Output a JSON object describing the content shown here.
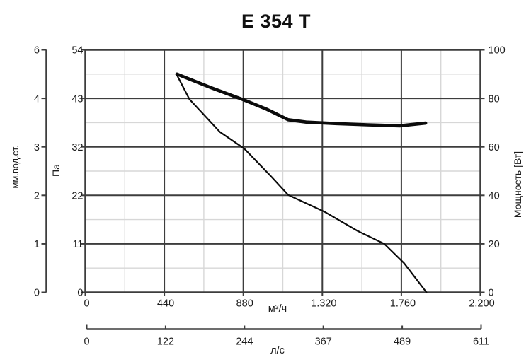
{
  "title": "E 354 T",
  "colors": {
    "background": "#ffffff",
    "grid_major": "#3d3d3d",
    "grid_minor": "#d7d7d7",
    "curve": "#0b0b0b",
    "text": "#1b1b1b"
  },
  "chart_data": {
    "type": "line",
    "title": "E 354 T",
    "x_axis_primary": {
      "label": "м³/ч",
      "range": [
        0,
        2200
      ],
      "ticks": [
        "0",
        "440",
        "880",
        "1.320",
        "1.760",
        "2.200"
      ]
    },
    "x_axis_secondary": {
      "label": "л/с",
      "range": [
        0,
        611
      ],
      "ticks": [
        "0",
        "122",
        "244",
        "367",
        "489",
        "611"
      ]
    },
    "y_axis_pressure_pa": {
      "label": "Па",
      "range": [
        0,
        54
      ],
      "ticks": [
        "0",
        "11",
        "22",
        "32",
        "43",
        "54"
      ]
    },
    "y_axis_pressure_mm": {
      "label": "мм.вод.ст.",
      "ticks": [
        "0",
        "1",
        "2",
        "3",
        "4",
        "6"
      ]
    },
    "y_axis_power": {
      "label": "Мощность [Вт]",
      "range": [
        0,
        100
      ],
      "ticks": [
        "0",
        "20",
        "40",
        "60",
        "80",
        "100"
      ]
    },
    "grid": {
      "x_minor_between_majors": true,
      "y_minor_between_majors": true
    },
    "series": [
      {
        "name": "pressure-curve",
        "y_axis": "y_axis_pressure_pa",
        "style": "thin",
        "points": [
          [
            510,
            48.4
          ],
          [
            580,
            43
          ],
          [
            750,
            35.7
          ],
          [
            885,
            32
          ],
          [
            1035,
            25.8
          ],
          [
            1130,
            21.7
          ],
          [
            1330,
            18
          ],
          [
            1515,
            13.7
          ],
          [
            1665,
            10.8
          ],
          [
            1775,
            6.5
          ],
          [
            1900,
            0
          ]
        ]
      },
      {
        "name": "power-curve",
        "y_axis": "y_axis_power",
        "style": "thick",
        "points": [
          [
            510,
            90
          ],
          [
            700,
            84.4
          ],
          [
            885,
            79.3
          ],
          [
            1010,
            75.5
          ],
          [
            1129,
            71.2
          ],
          [
            1230,
            70.2
          ],
          [
            1400,
            69.6
          ],
          [
            1570,
            69.1
          ],
          [
            1750,
            68.7
          ],
          [
            1895,
            69.8
          ]
        ]
      }
    ]
  }
}
